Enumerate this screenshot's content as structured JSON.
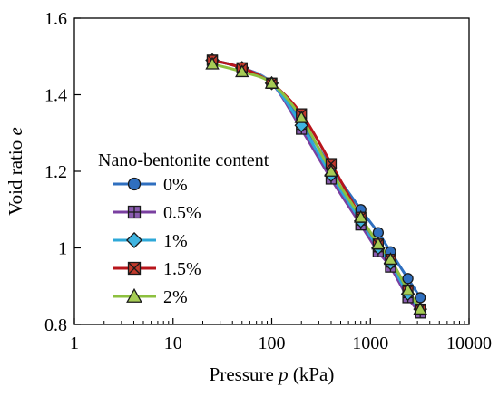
{
  "chart_data": {
    "type": "line",
    "xlabel_text": "Pressure ",
    "xlabel_var": "p",
    "xlabel_unit": " (kPa)",
    "ylabel_text": "Void ratio ",
    "ylabel_var": "e",
    "x_scale": "log",
    "xlim": [
      1,
      10000
    ],
    "ylim": [
      0.8,
      1.6
    ],
    "x_ticks": [
      1,
      10,
      100,
      1000,
      10000
    ],
    "x_tick_labels": [
      "1",
      "10",
      "100",
      "1000",
      "10000"
    ],
    "y_ticks": [
      0.8,
      1.0,
      1.2,
      1.4,
      1.6
    ],
    "y_tick_labels": [
      "0.8",
      "1",
      "1.2",
      "1.4",
      "1.6"
    ],
    "grid": false,
    "legend_title": "Nano-bentonite content",
    "legend_position": "center-left",
    "series": [
      {
        "name": "0%",
        "color": "#2f6fbf",
        "marker": "circle",
        "marker_fill": "#2f6fbf",
        "x": [
          25,
          50,
          100,
          200,
          400,
          800,
          1200,
          1600,
          2400,
          3200
        ],
        "y": [
          1.49,
          1.47,
          1.43,
          1.33,
          1.21,
          1.1,
          1.04,
          0.99,
          0.92,
          0.87
        ]
      },
      {
        "name": "0.5%",
        "color": "#7a3fa0",
        "marker": "plus-square",
        "marker_fill": "#8a5cb0",
        "x": [
          25,
          50,
          100,
          200,
          400,
          800,
          1200,
          1600,
          2400,
          3200
        ],
        "y": [
          1.49,
          1.47,
          1.43,
          1.31,
          1.18,
          1.06,
          0.99,
          0.95,
          0.87,
          0.83
        ]
      },
      {
        "name": "1%",
        "color": "#2ea8d8",
        "marker": "diamond",
        "marker_fill": "#3fb4e0",
        "x": [
          25,
          50,
          100,
          200,
          400,
          800,
          1200,
          1600,
          2400,
          3200
        ],
        "y": [
          1.49,
          1.47,
          1.43,
          1.32,
          1.19,
          1.07,
          1.0,
          0.96,
          0.88,
          0.84
        ]
      },
      {
        "name": "1.5%",
        "color": "#b8151b",
        "marker": "x-square",
        "marker_fill": "#c0392b",
        "x": [
          25,
          50,
          100,
          200,
          400,
          800,
          1200,
          1600,
          2400,
          3200
        ],
        "y": [
          1.49,
          1.47,
          1.43,
          1.35,
          1.22,
          1.08,
          1.01,
          0.97,
          0.89,
          0.84
        ]
      },
      {
        "name": "2%",
        "color": "#8dc03f",
        "marker": "triangle",
        "marker_fill": "#a6cc55",
        "x": [
          25,
          50,
          100,
          200,
          400,
          800,
          1200,
          1600,
          2400,
          3200
        ],
        "y": [
          1.48,
          1.46,
          1.43,
          1.34,
          1.2,
          1.08,
          1.01,
          0.97,
          0.89,
          0.84
        ]
      }
    ]
  }
}
